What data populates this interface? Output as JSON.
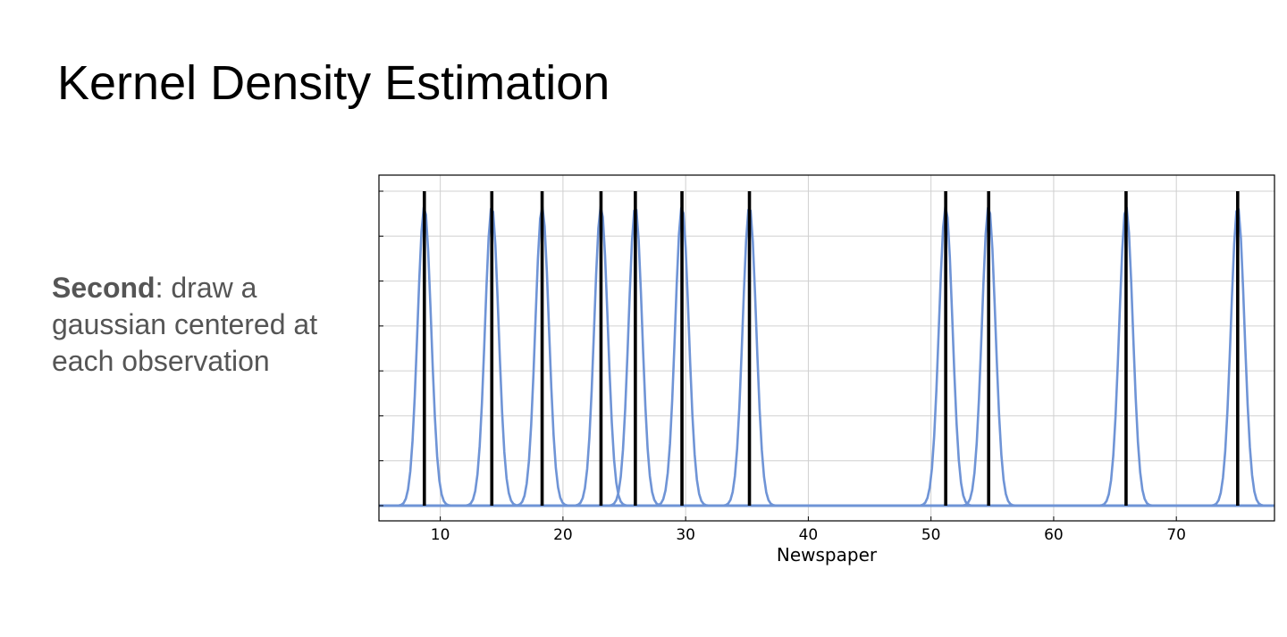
{
  "slide": {
    "title": "Kernel Density Estimation",
    "note_bold": "Second",
    "note_rest": ": draw a gaussian centered at each observation"
  },
  "chart_data": {
    "type": "line",
    "xlabel": "Newspaper",
    "ylabel": "",
    "xlim": [
      5,
      78
    ],
    "ylim": [
      0,
      1.05
    ],
    "x_ticks": [
      10,
      20,
      30,
      40,
      50,
      60,
      70
    ],
    "y_ticks": [
      0,
      0.15,
      0.3,
      0.45,
      0.6,
      0.75,
      0.9,
      1.05
    ],
    "grid": true,
    "observations": [
      8.7,
      14.2,
      18.3,
      23.1,
      25.9,
      29.7,
      35.2,
      51.2,
      54.7,
      65.9,
      75.0
    ],
    "observation_height": 1.05,
    "kernel": "gaussian",
    "kernel_bandwidth": 0.55,
    "kernel_peak": 1.0,
    "colors": {
      "kernel": "#6f94d6",
      "observation": "#000000",
      "grid": "#d0d0d0",
      "frame": "#000000"
    }
  }
}
